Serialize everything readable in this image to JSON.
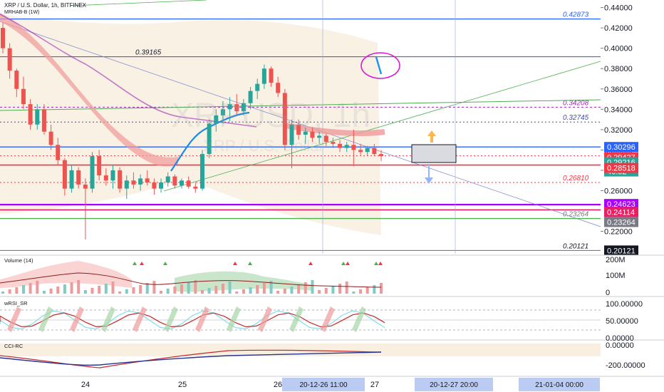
{
  "header": {
    "symbol_line": "XRP / U.S. Dollar, 1h, BITFINEX",
    "indicator_line": "MRHAB-B (1W)"
  },
  "watermark": {
    "big": "XRPUSD, 1h",
    "small": "XRP / U.S. Dollar"
  },
  "colors": {
    "background": "#ffffff",
    "up_candle": "#26a69a",
    "down_candle": "#ef5350",
    "blue_level": "#2962ff",
    "red_level": "#f23645",
    "green_line": "#4caf50",
    "purple_level": "#aa00ff",
    "magenta_level": "#e91e63"
  },
  "chart_data": [
    {
      "type": "candlestick",
      "title": "XRP / U.S. Dollar, 1h, BITFINEX",
      "y_axis": {
        "range": [
          0.198,
          0.446
        ],
        "ticks": [
          "0.44000",
          "0.42000",
          "0.40000",
          "0.38000",
          "0.36000",
          "0.34000",
          "0.32000",
          "0.30000",
          "0.28000",
          "0.26000",
          "0.22000"
        ]
      },
      "x_axis": {
        "ticks": [
          "24",
          "25",
          "26",
          "27"
        ],
        "crosshair_label": "20-12-26    11:00",
        "right_labels": [
          "20-12-27    20:00",
          "21-01-04    00:00"
        ]
      },
      "price_labels": [
        {
          "value": "0.30296",
          "color": "#2962ff"
        },
        {
          "value": "0.29427",
          "color": "#f23645"
        },
        {
          "value": "0.29216",
          "color": "#26a69a"
        },
        {
          "value": "46:52",
          "color": "#26a69a"
        },
        {
          "value": "0.28518",
          "color": "#f23645"
        },
        {
          "value": "0.24623",
          "color": "#aa00ff"
        },
        {
          "value": "0.24114",
          "color": "#e91e63"
        },
        {
          "value": "0.23264",
          "color": "#787b86"
        },
        {
          "value": "0.20121",
          "color": "#131722"
        }
      ],
      "level_annotations": [
        {
          "value": "0.42873",
          "y": 0.42873,
          "color": "#2962ff"
        },
        {
          "value": "0.39165",
          "y": 0.39165,
          "color": "#131722"
        },
        {
          "value": "0.34208",
          "y": 0.34208,
          "color": "#9c27b0"
        },
        {
          "value": "0.32745",
          "y": 0.32745,
          "color": "#3f51b5"
        },
        {
          "value": "0.26810",
          "y": 0.2681,
          "color": "#f23645"
        },
        {
          "value": "0.23264",
          "y": 0.23264,
          "color": "#787b86"
        },
        {
          "value": "0.20121",
          "y": 0.20121,
          "color": "#131722"
        }
      ],
      "ohlc": [
        [
          0.42,
          0.425,
          0.395,
          0.4
        ],
        [
          0.4,
          0.405,
          0.37,
          0.378
        ],
        [
          0.378,
          0.38,
          0.352,
          0.36
        ],
        [
          0.36,
          0.372,
          0.34,
          0.345
        ],
        [
          0.345,
          0.35,
          0.32,
          0.325
        ],
        [
          0.325,
          0.345,
          0.32,
          0.34
        ],
        [
          0.34,
          0.345,
          0.315,
          0.318
        ],
        [
          0.318,
          0.325,
          0.3,
          0.305
        ],
        [
          0.305,
          0.312,
          0.285,
          0.29
        ],
        [
          0.29,
          0.292,
          0.255,
          0.262
        ],
        [
          0.262,
          0.285,
          0.258,
          0.28
        ],
        [
          0.28,
          0.283,
          0.262,
          0.266
        ],
        [
          0.266,
          0.272,
          0.212,
          0.262
        ],
        [
          0.262,
          0.298,
          0.258,
          0.294
        ],
        [
          0.294,
          0.3,
          0.27,
          0.275
        ],
        [
          0.275,
          0.282,
          0.265,
          0.27
        ],
        [
          0.27,
          0.285,
          0.262,
          0.28
        ],
        [
          0.28,
          0.283,
          0.258,
          0.262
        ],
        [
          0.262,
          0.275,
          0.252,
          0.27
        ],
        [
          0.27,
          0.278,
          0.262,
          0.266
        ],
        [
          0.266,
          0.276,
          0.26,
          0.272
        ],
        [
          0.272,
          0.28,
          0.265,
          0.268
        ],
        [
          0.268,
          0.272,
          0.256,
          0.262
        ],
        [
          0.262,
          0.272,
          0.258,
          0.268
        ],
        [
          0.268,
          0.278,
          0.264,
          0.274
        ],
        [
          0.274,
          0.276,
          0.262,
          0.265
        ],
        [
          0.265,
          0.272,
          0.262,
          0.27
        ],
        [
          0.27,
          0.274,
          0.262,
          0.264
        ],
        [
          0.264,
          0.268,
          0.258,
          0.262
        ],
        [
          0.262,
          0.3,
          0.26,
          0.296
        ],
        [
          0.296,
          0.33,
          0.292,
          0.326
        ],
        [
          0.326,
          0.34,
          0.318,
          0.334
        ],
        [
          0.334,
          0.348,
          0.326,
          0.34
        ],
        [
          0.34,
          0.352,
          0.328,
          0.345
        ],
        [
          0.345,
          0.355,
          0.335,
          0.338
        ],
        [
          0.338,
          0.35,
          0.334,
          0.346
        ],
        [
          0.346,
          0.362,
          0.34,
          0.358
        ],
        [
          0.358,
          0.37,
          0.35,
          0.365
        ],
        [
          0.365,
          0.384,
          0.36,
          0.38
        ],
        [
          0.38,
          0.382,
          0.362,
          0.366
        ],
        [
          0.366,
          0.372,
          0.352,
          0.356
        ],
        [
          0.356,
          0.36,
          0.3,
          0.305
        ],
        [
          0.305,
          0.33,
          0.282,
          0.325
        ],
        [
          0.325,
          0.33,
          0.31,
          0.315
        ],
        [
          0.315,
          0.322,
          0.306,
          0.318
        ],
        [
          0.318,
          0.322,
          0.308,
          0.312
        ],
        [
          0.312,
          0.318,
          0.306,
          0.314
        ],
        [
          0.314,
          0.316,
          0.304,
          0.308
        ],
        [
          0.308,
          0.312,
          0.302,
          0.306
        ],
        [
          0.306,
          0.31,
          0.298,
          0.302
        ],
        [
          0.302,
          0.308,
          0.298,
          0.305
        ],
        [
          0.305,
          0.32,
          0.284,
          0.3
        ],
        [
          0.3,
          0.306,
          0.295,
          0.298
        ],
        [
          0.298,
          0.304,
          0.294,
          0.302
        ],
        [
          0.302,
          0.306,
          0.294,
          0.296
        ],
        [
          0.296,
          0.3,
          0.289,
          0.294
        ]
      ],
      "volume_axis": [
        "200M",
        "100M",
        "0"
      ],
      "wrsi_axis": [
        "100.00000",
        "50.00000",
        "0.00000"
      ],
      "cci_axis": [
        "0.00000",
        "-200.00000"
      ],
      "indicator_titles": [
        "Volume (14)",
        "wRSI_SR",
        "CCI-RC"
      ]
    }
  ]
}
